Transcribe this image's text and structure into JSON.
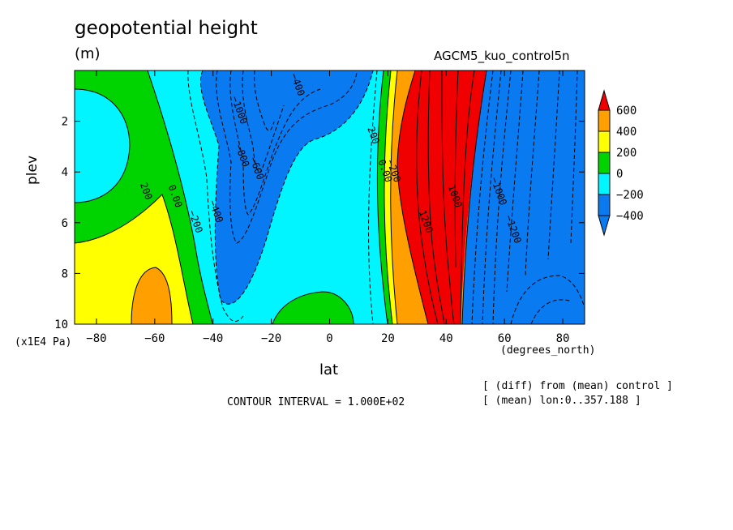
{
  "header": {
    "title": "geopotential height",
    "units": "(m)",
    "experiment": "AGCM5_kuo_control5n"
  },
  "footer": {
    "contour_interval": "CONTOUR INTERVAL = 1.000E+02",
    "notes": [
      "[ (diff) from (mean) control ]",
      "[ (mean) lon:0..357.188 ]"
    ]
  },
  "chart_data": {
    "type": "heatmap",
    "title": "geopotential height",
    "xlabel": "lat",
    "x_units": "(degrees_north)",
    "ylabel": "plev",
    "y_units": "(x1E4 Pa)",
    "xlim": [
      -87.5,
      87.5
    ],
    "ylim": [
      0,
      10
    ],
    "y_inverted": true,
    "x_ticks": [
      -80,
      -60,
      -40,
      -20,
      0,
      20,
      40,
      60,
      80
    ],
    "y_ticks": [
      2,
      4,
      6,
      8,
      10
    ],
    "colorbar": {
      "labels": [
        "600",
        "400",
        "200",
        "0",
        "-200",
        "-400"
      ],
      "levels": [
        -600,
        -400,
        -200,
        0,
        200,
        400,
        600
      ],
      "colors": [
        "#0a7af0",
        "#00f5ff",
        "#00d400",
        "#ffff00",
        "#ffa000",
        "#f00000"
      ],
      "extend": "both"
    },
    "contour_labels": [
      {
        "text": "-400",
        "lat": -12,
        "plev": 0.6
      },
      {
        "text": "-1000",
        "lat": -32,
        "plev": 1.6
      },
      {
        "text": "-800",
        "lat": -31,
        "plev": 3.4
      },
      {
        "text": "-600",
        "lat": -26,
        "plev": 3.9
      },
      {
        "text": "-400",
        "lat": -40,
        "plev": 5.6
      },
      {
        "text": "-200",
        "lat": -47,
        "plev": 6.0
      },
      {
        "text": "0.00",
        "lat": -54,
        "plev": 5.0
      },
      {
        "text": "200",
        "lat": -64,
        "plev": 4.8
      },
      {
        "text": "200",
        "lat": 14,
        "plev": 2.6
      },
      {
        "text": "0.00",
        "lat": 18,
        "plev": 4.0
      },
      {
        "text": "-200",
        "lat": 21,
        "plev": 4.0
      },
      {
        "text": "1200",
        "lat": 32,
        "plev": 6.0
      },
      {
        "text": "1000",
        "lat": 42,
        "plev": 5.0
      },
      {
        "text": "-1000",
        "lat": 57,
        "plev": 4.8
      },
      {
        "text": "-1200",
        "lat": 62,
        "plev": 6.3
      }
    ]
  }
}
